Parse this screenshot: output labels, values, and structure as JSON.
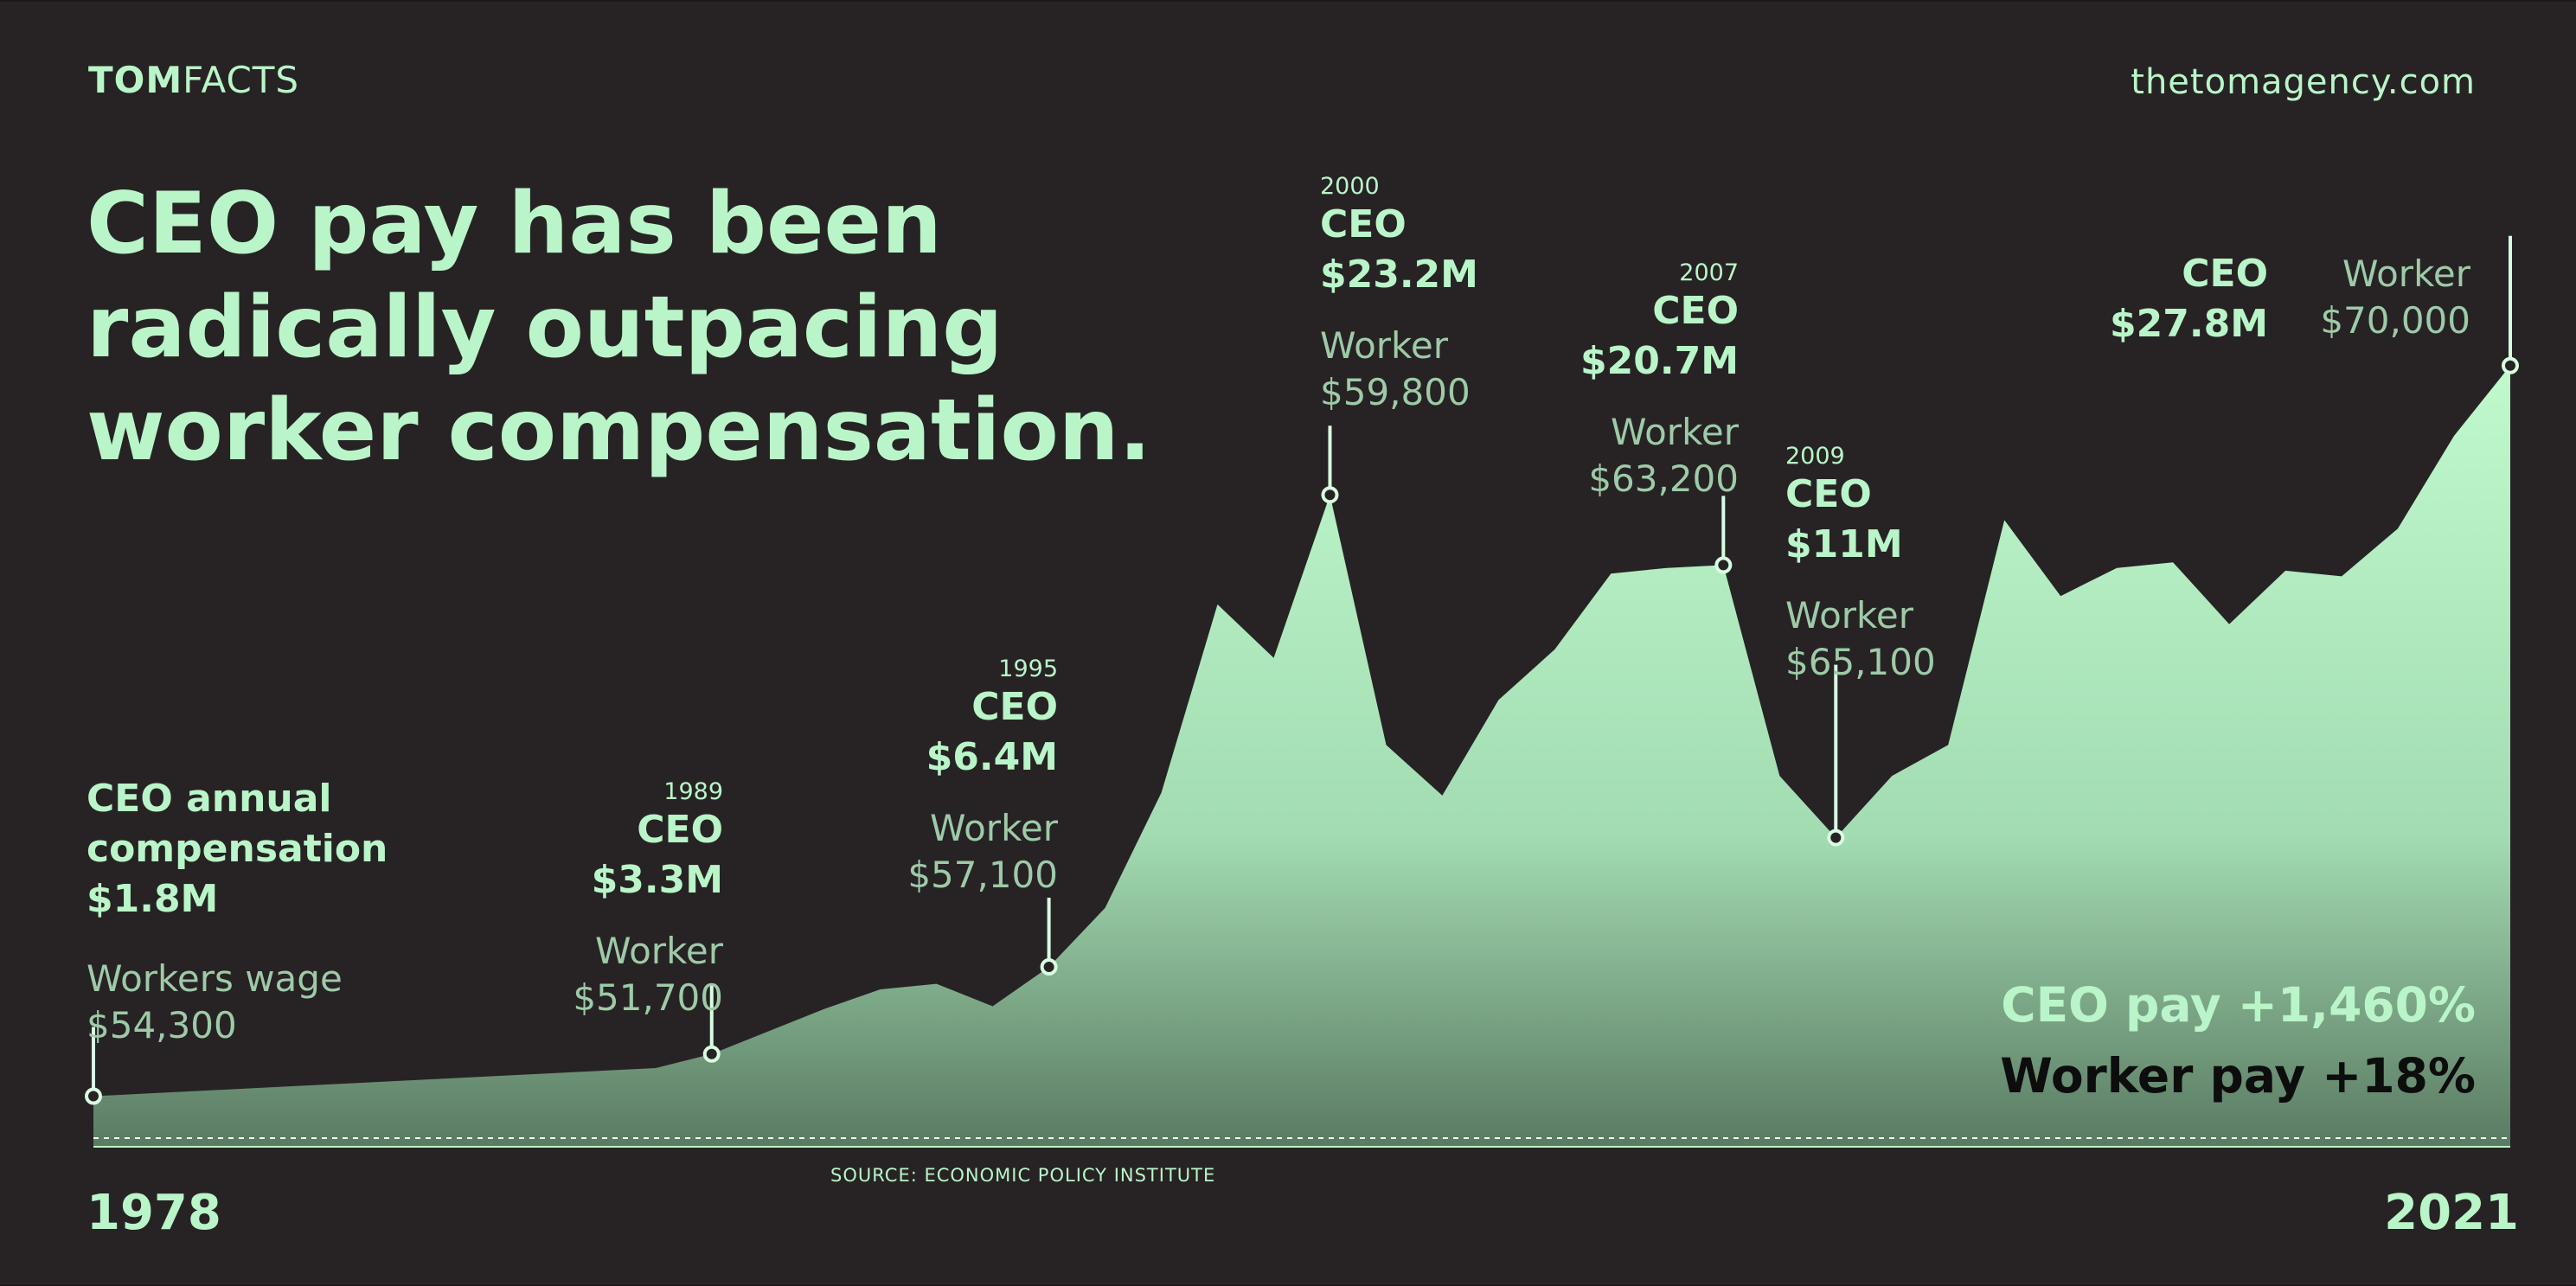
{
  "brand": {
    "bold": "TOM",
    "light": "FACTS"
  },
  "site": "thetomagency.com",
  "headline": "CEO pay has been radically outpacing worker compensation.",
  "annotations": [
    {
      "year": "",
      "ceo_label": "CEO annual compensation",
      "ceo_value": "$1.8M",
      "worker_label": "Workers wage",
      "worker_value": "$54,300"
    },
    {
      "year": "1989",
      "ceo_label": "CEO",
      "ceo_value": "$3.3M",
      "worker_label": "Worker",
      "worker_value": "$51,700"
    },
    {
      "year": "1995",
      "ceo_label": "CEO",
      "ceo_value": "$6.4M",
      "worker_label": "Worker",
      "worker_value": "$57,100"
    },
    {
      "year": "2000",
      "ceo_label": "CEO",
      "ceo_value": "$23.2M",
      "worker_label": "Worker",
      "worker_value": "$59,800"
    },
    {
      "year": "2007",
      "ceo_label": "CEO",
      "ceo_value": "$20.7M",
      "worker_label": "Worker",
      "worker_value": "$63,200"
    },
    {
      "year": "2009",
      "ceo_label": "CEO",
      "ceo_value": "$11M",
      "worker_label": "Worker",
      "worker_value": "$65,100"
    },
    {
      "year": "",
      "ceo_label": "CEO",
      "ceo_value": "$27.8M",
      "worker_label": "Worker",
      "worker_value": "$70,000"
    }
  ],
  "summary": {
    "ceo": "CEO pay +1,460%",
    "worker": "Worker pay +18%"
  },
  "axis": {
    "start": "1978",
    "end": "2021"
  },
  "source": "SOURCE: ECONOMIC POLICY INSTITUTE",
  "colors": {
    "background": "#272324",
    "accent": "#b9f5c8",
    "worker_text": "#9ecaa8",
    "worker_pay": "#0d0d0d"
  },
  "chart_data": {
    "type": "area",
    "title": "CEO pay has been radically outpacing worker compensation.",
    "xlabel": "",
    "ylabel": "",
    "xlim": [
      1978,
      2021
    ],
    "ylim": [
      0,
      28.5
    ],
    "grid": false,
    "legend": "none",
    "series": [
      {
        "name": "CEO",
        "x": [
          1978,
          1979,
          1980,
          1981,
          1982,
          1983,
          1984,
          1985,
          1986,
          1987,
          1988,
          1989,
          1990,
          1991,
          1992,
          1993,
          1994,
          1995,
          1996,
          1997,
          1998,
          1999,
          2000,
          2001,
          2002,
          2003,
          2004,
          2005,
          2006,
          2007,
          2008,
          2009,
          2010,
          2011,
          2012,
          2013,
          2014,
          2015,
          2016,
          2017,
          2018,
          2019,
          2020,
          2021
        ],
        "values": [
          1.8,
          1.9,
          2.0,
          2.1,
          2.2,
          2.3,
          2.4,
          2.5,
          2.6,
          2.7,
          2.8,
          3.3,
          4.1,
          4.9,
          5.6,
          5.8,
          5.0,
          6.4,
          8.5,
          12.6,
          19.3,
          17.4,
          23.2,
          14.3,
          12.5,
          15.9,
          17.7,
          20.4,
          20.6,
          20.7,
          13.2,
          11.0,
          13.2,
          14.3,
          22.3,
          19.6,
          20.6,
          20.8,
          18.6,
          20.5,
          20.3,
          22.0,
          25.3,
          27.8
        ]
      },
      {
        "name": "Worker",
        "x": [
          1978,
          1989,
          1995,
          2000,
          2007,
          2009,
          2021
        ],
        "values": [
          54300,
          51700,
          57100,
          59800,
          63200,
          65100,
          70000
        ]
      }
    ],
    "highlights": [
      1978,
      1989,
      1995,
      2000,
      2007,
      2009,
      2021
    ]
  }
}
